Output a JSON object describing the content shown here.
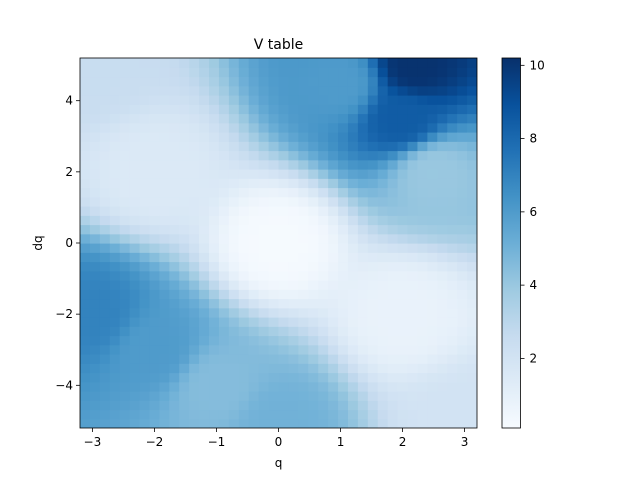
{
  "chart_data": {
    "type": "heatmap",
    "title": "V table",
    "xlabel": "q",
    "ylabel": "dq",
    "xlim": [
      -3.2,
      3.2
    ],
    "ylim": [
      -5.2,
      5.2
    ],
    "x_ticks": [
      -3,
      -2,
      -1,
      0,
      1,
      2,
      3
    ],
    "y_ticks": [
      -4,
      -2,
      0,
      2,
      4
    ],
    "x_tick_labels": [
      "−3",
      "−2",
      "−1",
      "0",
      "1",
      "2",
      "3"
    ],
    "y_tick_labels": [
      "−4",
      "−2",
      "0",
      "2",
      "4"
    ],
    "colormap": "Blues",
    "colorbar": {
      "vmin": 0.1,
      "vmax": 10.2,
      "ticks": [
        2,
        4,
        6,
        8,
        10
      ],
      "tick_labels": [
        "2",
        "4",
        "6",
        "8",
        "10"
      ]
    },
    "grid": false,
    "description_of_values": [
      {
        "q": 2.2,
        "dq": 5.0,
        "value": 10.1
      },
      {
        "q": 2.0,
        "dq": 3.5,
        "value": 8.5
      },
      {
        "q": 1.0,
        "dq": 4.5,
        "value": 6.0
      },
      {
        "q": 2.5,
        "dq": 2.0,
        "value": 4.0
      },
      {
        "q": -3.0,
        "dq": -2.0,
        "value": 7.0
      },
      {
        "q": -2.0,
        "dq": -3.0,
        "value": 6.0
      },
      {
        "q": -1.0,
        "dq": -4.0,
        "value": 4.5
      },
      {
        "q": 0.0,
        "dq": -5.0,
        "value": 5.0
      },
      {
        "q": -2.0,
        "dq": 2.0,
        "value": 1.5
      },
      {
        "q": 0.0,
        "dq": 0.0,
        "value": 0.2
      },
      {
        "q": 2.0,
        "dq": -2.0,
        "value": 0.8
      },
      {
        "q": 3.0,
        "dq": -5.0,
        "value": 2.0
      },
      {
        "q": -3.0,
        "dq": 5.0,
        "value": 2.5
      }
    ]
  }
}
